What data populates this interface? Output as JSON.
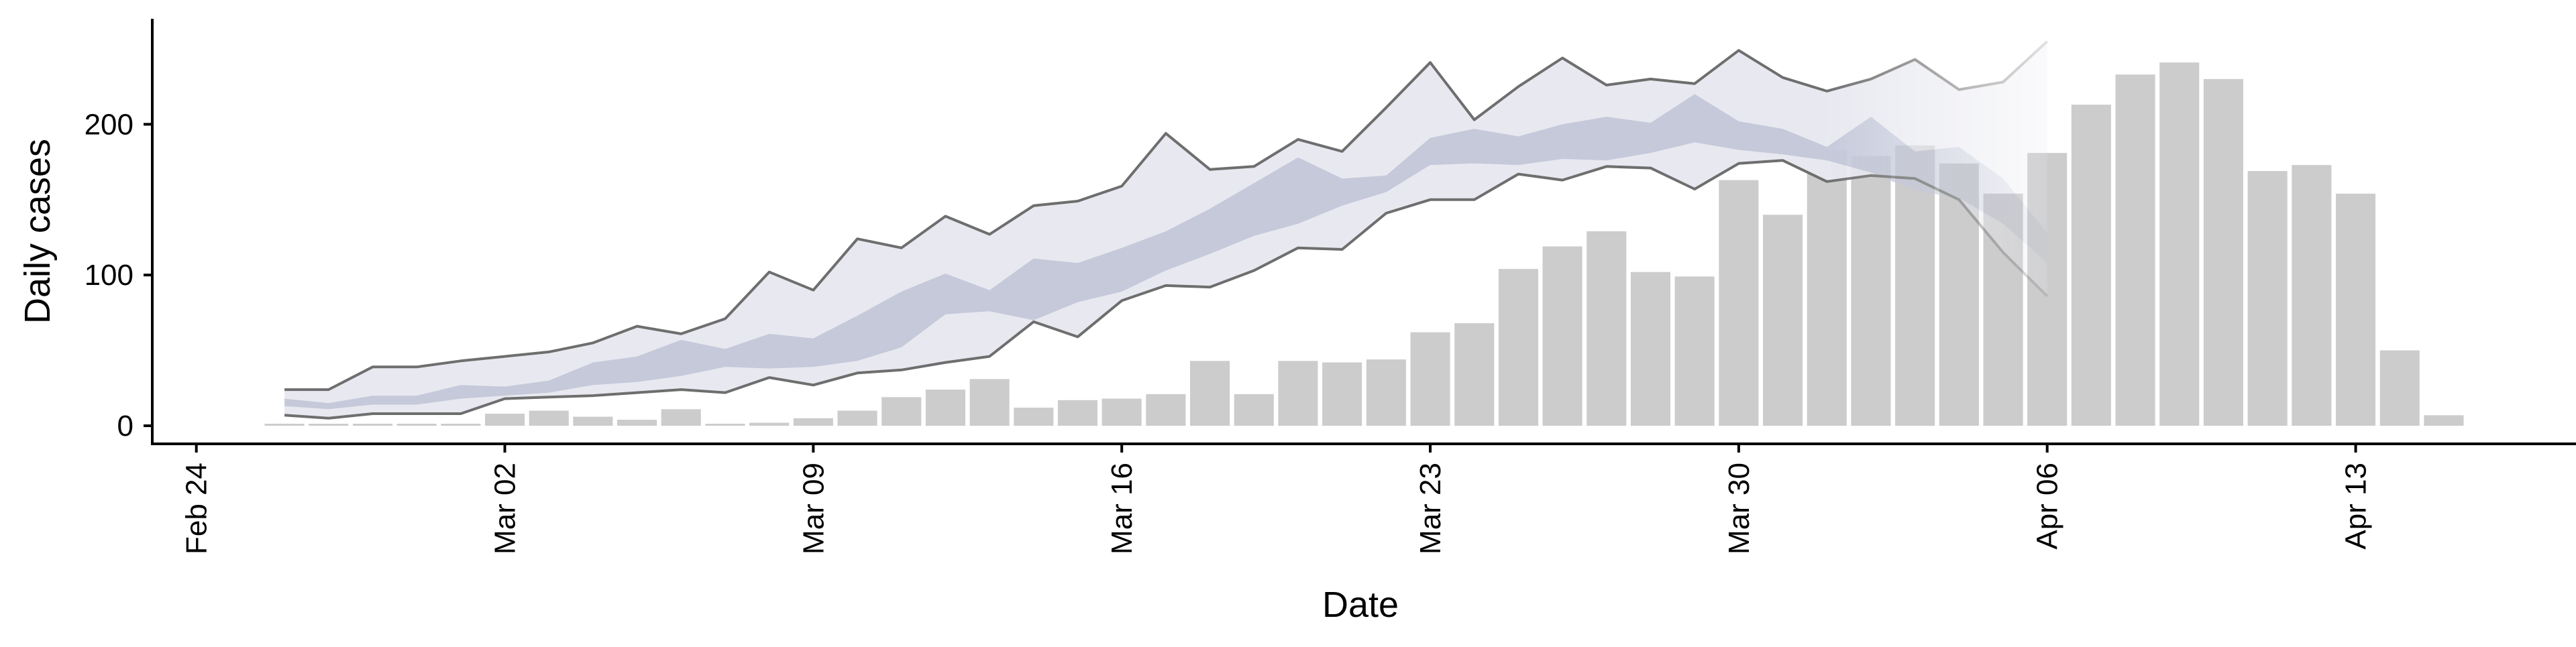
{
  "chart_data": {
    "type": "bar",
    "title": "",
    "xlabel": "Date",
    "ylabel": "Daily cases",
    "x_tick_labels": [
      "Feb 24",
      "Mar 02",
      "Mar 09",
      "Mar 16",
      "Mar 23",
      "Mar 30",
      "Apr 06",
      "Apr 13"
    ],
    "x_tick_dates": [
      "2020-02-24",
      "2020-03-02",
      "2020-03-09",
      "2020-03-16",
      "2020-03-23",
      "2020-03-30",
      "2020-04-06",
      "2020-04-13"
    ],
    "y_ticks": [
      0,
      100,
      200
    ],
    "y_tick_labels": [
      "0",
      "100",
      "200"
    ],
    "xlim": [
      "2020-02-23",
      "2020-04-18"
    ],
    "ylim": [
      -12,
      270
    ],
    "grid": false,
    "legend": "none",
    "colors": {
      "bars": "#cccccc",
      "outer_band": "#e8e9f0",
      "inner_band": "#c5c9da",
      "band_lines": "#6e6e6e"
    },
    "series": [
      {
        "type": "bar",
        "dates": [
          "2020-02-26",
          "2020-02-27",
          "2020-02-28",
          "2020-02-29",
          "2020-03-01",
          "2020-03-02",
          "2020-03-03",
          "2020-03-04",
          "2020-03-05",
          "2020-03-06",
          "2020-03-07",
          "2020-03-08",
          "2020-03-09",
          "2020-03-10",
          "2020-03-11",
          "2020-03-12",
          "2020-03-13",
          "2020-03-14",
          "2020-03-15",
          "2020-03-16",
          "2020-03-17",
          "2020-03-18",
          "2020-03-19",
          "2020-03-20",
          "2020-03-21",
          "2020-03-22",
          "2020-03-23",
          "2020-03-24",
          "2020-03-25",
          "2020-03-26",
          "2020-03-27",
          "2020-03-28",
          "2020-03-29",
          "2020-03-30",
          "2020-03-31",
          "2020-04-01",
          "2020-04-02",
          "2020-04-03",
          "2020-04-04",
          "2020-04-05",
          "2020-04-06",
          "2020-04-07",
          "2020-04-08",
          "2020-04-09",
          "2020-04-10",
          "2020-04-11",
          "2020-04-12",
          "2020-04-13",
          "2020-04-14",
          "2020-04-15"
        ],
        "values": [
          0,
          0,
          0,
          0,
          1,
          8,
          10,
          6,
          4,
          11,
          1,
          2,
          5,
          10,
          19,
          24,
          31,
          12,
          17,
          18,
          21,
          43,
          21,
          43,
          42,
          44,
          62,
          68,
          104,
          119,
          129,
          102,
          99,
          163,
          140,
          183,
          179,
          186,
          174,
          154,
          181,
          213,
          233,
          241,
          230,
          169,
          173,
          154,
          50,
          7
        ]
      },
      {
        "type": "area",
        "role": "outer_band",
        "dates": [
          "2020-02-26",
          "2020-02-27",
          "2020-02-28",
          "2020-02-29",
          "2020-03-01",
          "2020-03-02",
          "2020-03-03",
          "2020-03-04",
          "2020-03-05",
          "2020-03-06",
          "2020-03-07",
          "2020-03-08",
          "2020-03-09",
          "2020-03-10",
          "2020-03-11",
          "2020-03-12",
          "2020-03-13",
          "2020-03-14",
          "2020-03-15",
          "2020-03-16",
          "2020-03-17",
          "2020-03-18",
          "2020-03-19",
          "2020-03-20",
          "2020-03-21",
          "2020-03-22",
          "2020-03-23",
          "2020-03-24",
          "2020-03-25",
          "2020-03-26",
          "2020-03-27",
          "2020-03-28",
          "2020-03-29",
          "2020-03-30",
          "2020-03-31",
          "2020-04-01",
          "2020-04-02",
          "2020-04-03",
          "2020-04-04",
          "2020-04-05",
          "2020-04-06"
        ],
        "upper": [
          24,
          24,
          39,
          39,
          43,
          46,
          49,
          55,
          66,
          61,
          71,
          102,
          90,
          124,
          118,
          139,
          127,
          146,
          149,
          159,
          194,
          170,
          172,
          190,
          182,
          211,
          241,
          203,
          225,
          244,
          226,
          230,
          227,
          249,
          231,
          222,
          230,
          243,
          223,
          228,
          255
        ],
        "lower": [
          7,
          5,
          8,
          8,
          8,
          18,
          19,
          20,
          22,
          24,
          22,
          32,
          27,
          35,
          37,
          42,
          46,
          69,
          59,
          83,
          93,
          92,
          103,
          118,
          117,
          141,
          150,
          150,
          167,
          163,
          172,
          171,
          157,
          174,
          176,
          162,
          166,
          164,
          150,
          115,
          86
        ]
      },
      {
        "type": "area",
        "role": "inner_band",
        "dates": [
          "2020-02-26",
          "2020-02-27",
          "2020-02-28",
          "2020-02-29",
          "2020-03-01",
          "2020-03-02",
          "2020-03-03",
          "2020-03-04",
          "2020-03-05",
          "2020-03-06",
          "2020-03-07",
          "2020-03-08",
          "2020-03-09",
          "2020-03-10",
          "2020-03-11",
          "2020-03-12",
          "2020-03-13",
          "2020-03-14",
          "2020-03-15",
          "2020-03-16",
          "2020-03-17",
          "2020-03-18",
          "2020-03-19",
          "2020-03-20",
          "2020-03-21",
          "2020-03-22",
          "2020-03-23",
          "2020-03-24",
          "2020-03-25",
          "2020-03-26",
          "2020-03-27",
          "2020-03-28",
          "2020-03-29",
          "2020-03-30",
          "2020-03-31",
          "2020-04-01",
          "2020-04-02",
          "2020-04-03",
          "2020-04-04",
          "2020-04-05",
          "2020-04-06"
        ],
        "upper": [
          18,
          15,
          20,
          20,
          27,
          26,
          30,
          42,
          46,
          57,
          51,
          61,
          58,
          73,
          89,
          101,
          90,
          111,
          108,
          118,
          129,
          144,
          161,
          178,
          164,
          166,
          191,
          197,
          192,
          200,
          205,
          201,
          220,
          202,
          197,
          185,
          205,
          182,
          185,
          164,
          128
        ],
        "lower": [
          13,
          11,
          14,
          14,
          18,
          20,
          22,
          27,
          29,
          33,
          39,
          38,
          39,
          43,
          52,
          74,
          76,
          70,
          82,
          89,
          103,
          114,
          126,
          134,
          146,
          155,
          173,
          174,
          173,
          177,
          176,
          181,
          188,
          183,
          180,
          176,
          168,
          156,
          151,
          134,
          108
        ]
      }
    ]
  }
}
